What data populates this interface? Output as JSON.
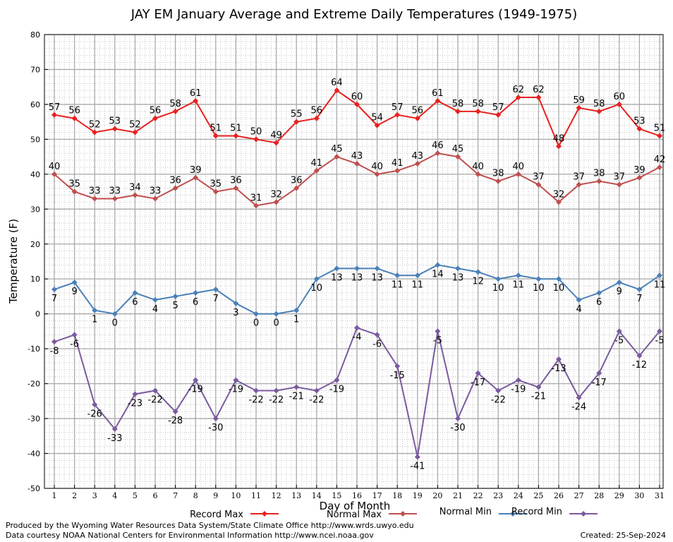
{
  "chart_data": {
    "type": "line",
    "title": "JAY EM January Average and Extreme Daily Temperatures (1949-1975)",
    "xlabel": "Day of Month",
    "ylabel": "Temperature (F)",
    "ylim": [
      -50,
      80
    ],
    "yticks": [
      -50,
      -40,
      -30,
      -20,
      -10,
      0,
      10,
      20,
      30,
      40,
      50,
      60,
      70,
      80
    ],
    "categories": [
      "1",
      "2",
      "3",
      "4",
      "5",
      "6",
      "7",
      "8",
      "9",
      "10",
      "11",
      "12",
      "13",
      "14",
      "15",
      "16",
      "17",
      "18",
      "19",
      "20",
      "21",
      "22",
      "23",
      "24",
      "25",
      "26",
      "27",
      "28",
      "29",
      "30",
      "31"
    ],
    "grid": true,
    "legend_position": "bottom",
    "series": [
      {
        "name": "Record Max",
        "color": "#e8211f",
        "label_side": "above",
        "values": [
          57,
          56,
          52,
          53,
          52,
          56,
          58,
          61,
          51,
          51,
          50,
          49,
          55,
          56,
          64,
          60,
          54,
          57,
          56,
          61,
          58,
          58,
          57,
          62,
          62,
          48,
          59,
          58,
          60,
          53,
          51
        ]
      },
      {
        "name": "Normal Max",
        "color": "#bf4f4f",
        "label_side": "above",
        "values": [
          40,
          35,
          33,
          33,
          34,
          33,
          36,
          39,
          35,
          36,
          31,
          32,
          36,
          41,
          45,
          43,
          40,
          41,
          43,
          46,
          45,
          40,
          38,
          40,
          37,
          32,
          37,
          38,
          37,
          39,
          42
        ]
      },
      {
        "name": "Normal Min",
        "color": "#4a80b8",
        "label_side": "below",
        "values": [
          7,
          9,
          1,
          0,
          6,
          4,
          5,
          6,
          7,
          3,
          0,
          0,
          1,
          10,
          13,
          13,
          13,
          11,
          11,
          14,
          13,
          12,
          10,
          11,
          10,
          10,
          4,
          6,
          9,
          7,
          11
        ]
      },
      {
        "name": "Record Min",
        "color": "#7a5b9e",
        "label_side": "below",
        "values": [
          -8,
          -6,
          -26,
          -33,
          -23,
          -22,
          -28,
          -19,
          -30,
          -19,
          -22,
          -22,
          -21,
          -22,
          -19,
          -4,
          -6,
          -15,
          -41,
          -5,
          -30,
          -17,
          -22,
          -19,
          -21,
          -13,
          -24,
          -17,
          -5,
          -12,
          -5
        ]
      }
    ]
  },
  "footer": {
    "produced_by": "Produced by the Wyoming Water Resources Data System/State Climate Office http://www.wrds.uwyo.edu",
    "data_courtesy": "Data courtesy NOAA National Centers for Environmental Information http://www.ncei.noaa.gov",
    "created": "Created: 25-Sep-2024"
  }
}
